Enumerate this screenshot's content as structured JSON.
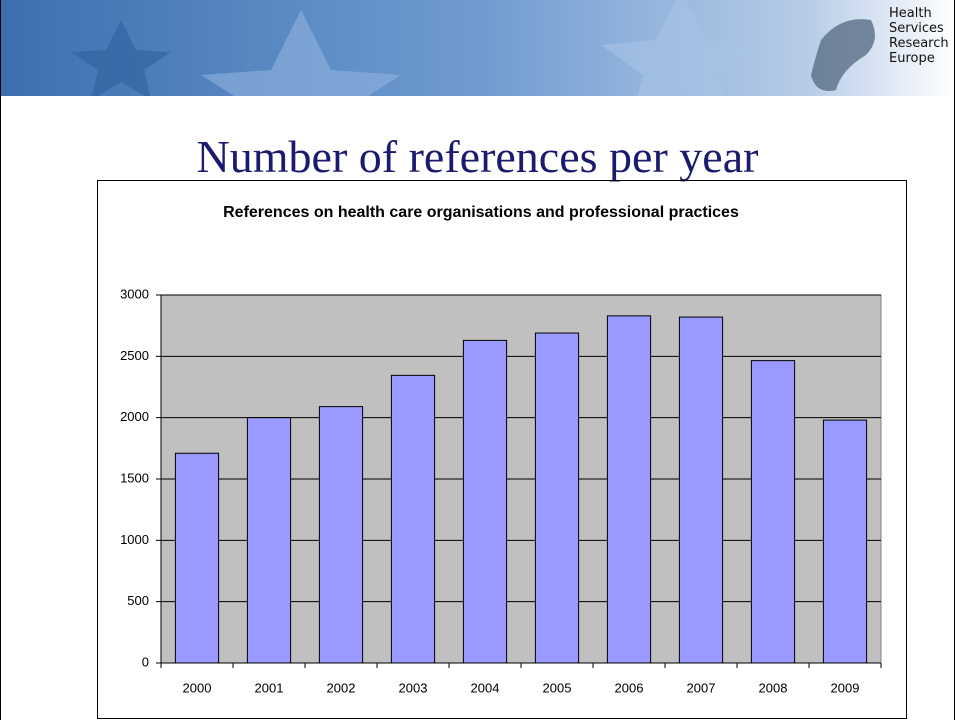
{
  "logo": [
    "Health",
    "Services",
    "Research",
    "Europe"
  ],
  "slide_title": "Number of references per year",
  "chart_data": {
    "type": "bar",
    "title": "References on health care organisations and professional practices",
    "categories": [
      "2000",
      "2001",
      "2002",
      "2003",
      "2004",
      "2005",
      "2006",
      "2007",
      "2008",
      "2009"
    ],
    "values": [
      1710,
      2000,
      2090,
      2345,
      2630,
      2690,
      2830,
      2820,
      2465,
      1980
    ],
    "color": "#9999ff",
    "ylim": [
      0,
      3000
    ],
    "yticks": [
      0,
      500,
      1000,
      1500,
      2000,
      2500,
      3000
    ],
    "grid": true
  }
}
